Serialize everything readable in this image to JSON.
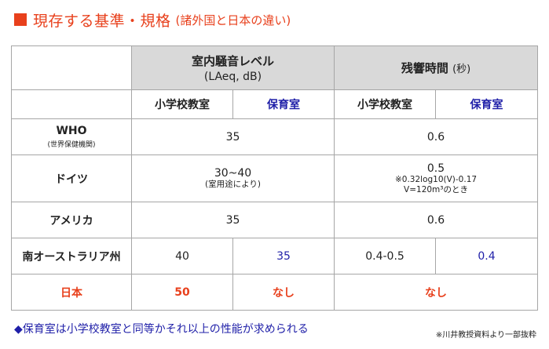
{
  "title": {
    "main": "現存する基準・規格",
    "sub": "(諸外国と日本の違い)"
  },
  "table": {
    "group_headers": [
      {
        "label": "室内騒音レベル",
        "unit": "(LAeq, dB)"
      },
      {
        "label": "残響時間",
        "unit": "(秒)"
      }
    ],
    "sub_headers": [
      "小学校教室",
      "保育室",
      "小学校教室",
      "保育室"
    ],
    "rows": [
      {
        "name": "WHO",
        "sub": "(世界保健機関)",
        "noise": "35",
        "reverb": "0.6"
      },
      {
        "name": "ドイツ",
        "noise": "30~40",
        "noise_note": "(室用途により)",
        "reverb": "0.5",
        "reverb_note1": "※0.32log10(V)-0.17",
        "reverb_note2": "V=120m³のとき"
      },
      {
        "name": "アメリカ",
        "noise": "35",
        "reverb": "0.6"
      },
      {
        "name": "南オーストラリア州",
        "noise_school": "40",
        "noise_nursery": "35",
        "reverb_school": "0.4-0.5",
        "reverb_nursery": "0.4"
      },
      {
        "name": "日本",
        "noise_school": "50",
        "noise_nursery": "なし",
        "reverb": "なし"
      }
    ]
  },
  "footer": "◆保育室は小学校教室と同等かそれ以上の性能が求められる",
  "source": "※川井教授資料より一部抜粋",
  "colors": {
    "accent": "#e8401c",
    "blue": "#1f1fa8",
    "header_bg": "#d9d9d9"
  }
}
